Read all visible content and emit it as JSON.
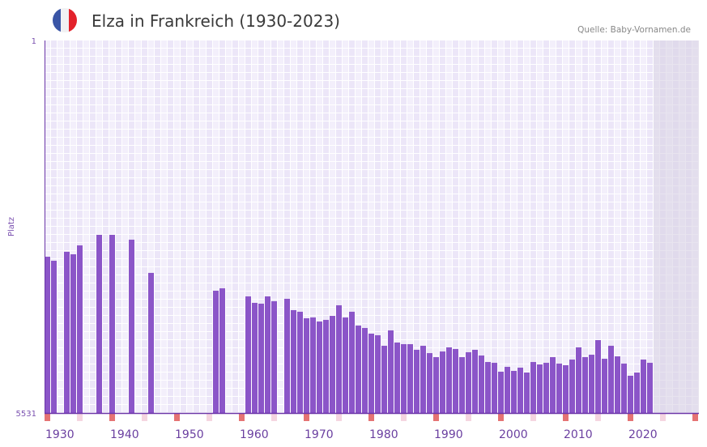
{
  "header": {
    "title": "Elza in Frankreich (1930-2023)",
    "source": "Quelle: Baby-Vornamen.de",
    "flag": "france-flag-icon"
  },
  "colors": {
    "bar": "#8b55c8",
    "axis": "#6b35a8",
    "decade_marker": "#e57373",
    "half_decade_marker": "#f5d5e0",
    "future_region": "#e4e0ec"
  },
  "chart_data": {
    "type": "bar",
    "title": "Elza in Frankreich (1930-2023)",
    "xlabel": "",
    "ylabel": "Platz",
    "ylim": [
      5531,
      1
    ],
    "y_ticks": [
      "1",
      "5531"
    ],
    "x_range": [
      1930,
      2030
    ],
    "x_ticks": [
      "1930",
      "1940",
      "1950",
      "1960",
      "1970",
      "1980",
      "1990",
      "2000",
      "2010",
      "2020"
    ],
    "grid": true,
    "future_from": 2024,
    "data": [
      [
        1930,
        3211
      ],
      [
        1931,
        3271
      ],
      [
        1933,
        3138
      ],
      [
        1934,
        3175
      ],
      [
        1935,
        3043
      ],
      [
        1938,
        2886
      ],
      [
        1940,
        2886
      ],
      [
        1943,
        2958
      ],
      [
        1946,
        3451
      ],
      [
        1956,
        3716
      ],
      [
        1957,
        3680
      ],
      [
        1961,
        3800
      ],
      [
        1962,
        3896
      ],
      [
        1963,
        3908
      ],
      [
        1964,
        3800
      ],
      [
        1965,
        3872
      ],
      [
        1967,
        3836
      ],
      [
        1968,
        4004
      ],
      [
        1969,
        4028
      ],
      [
        1970,
        4125
      ],
      [
        1971,
        4113
      ],
      [
        1972,
        4173
      ],
      [
        1973,
        4149
      ],
      [
        1974,
        4089
      ],
      [
        1975,
        3932
      ],
      [
        1976,
        4113
      ],
      [
        1977,
        4028
      ],
      [
        1978,
        4233
      ],
      [
        1979,
        4269
      ],
      [
        1980,
        4353
      ],
      [
        1981,
        4377
      ],
      [
        1982,
        4533
      ],
      [
        1983,
        4305
      ],
      [
        1984,
        4485
      ],
      [
        1985,
        4509
      ],
      [
        1986,
        4509
      ],
      [
        1987,
        4593
      ],
      [
        1988,
        4533
      ],
      [
        1989,
        4642
      ],
      [
        1990,
        4702
      ],
      [
        1991,
        4618
      ],
      [
        1992,
        4557
      ],
      [
        1993,
        4581
      ],
      [
        1994,
        4702
      ],
      [
        1995,
        4629
      ],
      [
        1996,
        4593
      ],
      [
        1997,
        4678
      ],
      [
        1998,
        4774
      ],
      [
        1999,
        4786
      ],
      [
        2000,
        4918
      ],
      [
        2001,
        4846
      ],
      [
        2002,
        4906
      ],
      [
        2003,
        4858
      ],
      [
        2004,
        4930
      ],
      [
        2005,
        4774
      ],
      [
        2006,
        4810
      ],
      [
        2007,
        4786
      ],
      [
        2008,
        4702
      ],
      [
        2009,
        4798
      ],
      [
        2010,
        4822
      ],
      [
        2011,
        4738
      ],
      [
        2012,
        4557
      ],
      [
        2013,
        4702
      ],
      [
        2014,
        4666
      ],
      [
        2015,
        4449
      ],
      [
        2016,
        4726
      ],
      [
        2017,
        4533
      ],
      [
        2018,
        4690
      ],
      [
        2019,
        4798
      ],
      [
        2020,
        4978
      ],
      [
        2021,
        4930
      ],
      [
        2022,
        4738
      ],
      [
        2023,
        4786
      ]
    ]
  }
}
